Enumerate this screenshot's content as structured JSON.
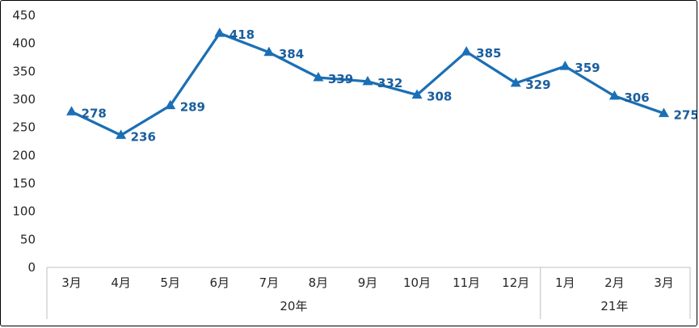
{
  "chart_data": {
    "type": "line",
    "title": "",
    "xlabel": "",
    "ylabel": "",
    "categories": [
      "3月",
      "4月",
      "5月",
      "6月",
      "7月",
      "8月",
      "9月",
      "10月",
      "11月",
      "12月",
      "1月",
      "2月",
      "3月"
    ],
    "values": [
      278,
      236,
      289,
      418,
      384,
      339,
      332,
      308,
      385,
      329,
      359,
      306,
      275
    ],
    "group_labels": [
      {
        "label": "20年",
        "start": 0,
        "end": 9
      },
      {
        "label": "21年",
        "start": 10,
        "end": 12
      }
    ],
    "ylim": [
      0,
      450
    ],
    "ytick_step": 50,
    "yticks": [
      0,
      50,
      100,
      150,
      200,
      250,
      300,
      350,
      400,
      450
    ],
    "grid": false,
    "legend_position": "none",
    "marker": "triangle-up",
    "series_name": "",
    "colors": {
      "line": "#1B6FB5",
      "marker": "#1B6FB5",
      "data_label": "#1A5E9E",
      "axis_line": "#BFBFBF",
      "tick_text": "#262626",
      "frame_border": "#000000"
    }
  }
}
